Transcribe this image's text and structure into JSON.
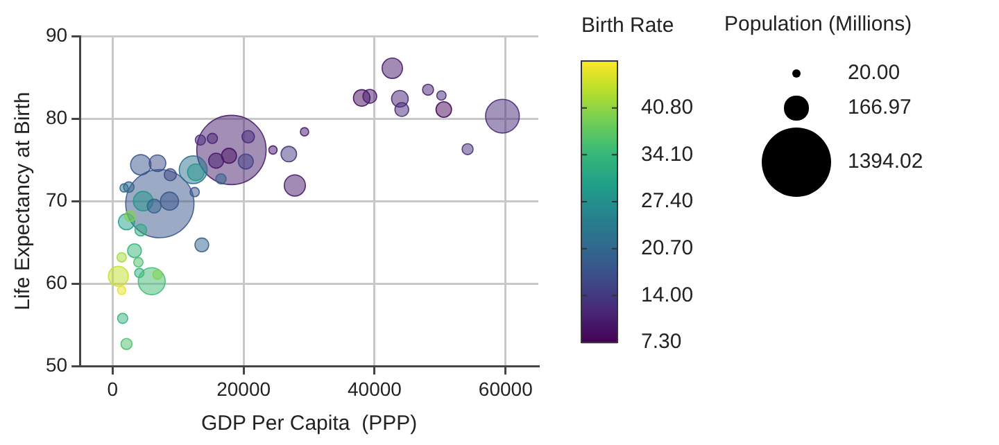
{
  "chart_data": {
    "type": "bubble",
    "xlabel": "GDP Per Capita  (PPP)",
    "ylabel": "Life Expectancy at Birth",
    "clabel": "Birth Rate",
    "legend_title": "Population (Millions)",
    "xlim": [
      -5000,
      65000
    ],
    "xticks": [
      0,
      20000,
      40000,
      60000
    ],
    "ylim": [
      50,
      90
    ],
    "yticks": [
      50,
      60,
      70,
      80,
      90
    ],
    "grid": true,
    "clim": [
      7.3,
      47.5
    ],
    "cticks": [
      {
        "value": 7.3,
        "label": "7.30"
      },
      {
        "value": 14,
        "label": "14.00"
      },
      {
        "value": 20.7,
        "label": "20.70"
      },
      {
        "value": 27.4,
        "label": "27.40"
      },
      {
        "value": 34.1,
        "label": "34.10"
      },
      {
        "value": 40.8,
        "label": "40.80"
      }
    ],
    "size_legend": [
      {
        "value": 20,
        "label": "20.00"
      },
      {
        "value": 166.97,
        "label": "166.97"
      },
      {
        "value": 1394.02,
        "label": "1394.02"
      }
    ],
    "series": [
      {
        "x": [
          18140,
          7210,
          4300,
          6850,
          8800,
          2470,
          1750,
          12300,
          12700,
          12530,
          13400,
          15230,
          20700,
          20330,
          16540,
          17770,
          15800,
          24480,
          26900,
          27820,
          29300,
          4660,
          8680,
          6340,
          2120,
          2690,
          4300,
          13620,
          3340,
          1380,
          3930,
          870,
          4080,
          5970,
          6850,
          1380,
          1530,
          2120,
          42700,
          38030,
          39270,
          43860,
          44150,
          48160,
          50200,
          50560,
          59520,
          54200
        ],
        "values": [
          76.2,
          69.7,
          74.4,
          74.6,
          73.2,
          71.7,
          71.6,
          73.8,
          73.5,
          71.1,
          77.4,
          77.6,
          77.8,
          74.8,
          72.7,
          75.5,
          74.9,
          76.2,
          75.7,
          71.9,
          78.4,
          70,
          70,
          69.4,
          67.5,
          68.2,
          66.5,
          64.7,
          64,
          63.2,
          62.6,
          60.9,
          61.3,
          60.3,
          61.1,
          59.2,
          55.8,
          52.7,
          86.1,
          82.5,
          82.7,
          82.4,
          81.1,
          83.5,
          82.8,
          81.1,
          80.3,
          76.3
        ],
        "sizes": [
          1394,
          1350,
          120,
          80,
          42,
          32,
          20,
          225,
          80,
          25,
          30,
          30,
          45,
          65,
          30,
          65,
          65,
          20,
          70,
          130,
          20,
          110,
          95,
          55,
          75,
          35,
          40,
          55,
          55,
          25,
          25,
          115,
          25,
          210,
          25,
          20,
          30,
          35,
          120,
          80,
          55,
          80,
          55,
          35,
          25,
          70,
          330,
          35
        ],
        "cvalues": [
          10.5,
          18,
          18,
          17,
          16,
          20,
          22,
          22,
          28,
          18,
          12,
          11,
          12,
          15,
          20,
          9,
          10,
          10,
          14,
          10,
          10,
          28,
          18,
          20,
          30,
          40,
          32,
          20,
          34,
          42,
          36,
          44,
          33,
          35,
          40,
          46,
          33,
          36,
          10,
          8,
          10,
          11,
          12,
          11,
          12,
          8,
          12,
          13
        ]
      }
    ]
  }
}
